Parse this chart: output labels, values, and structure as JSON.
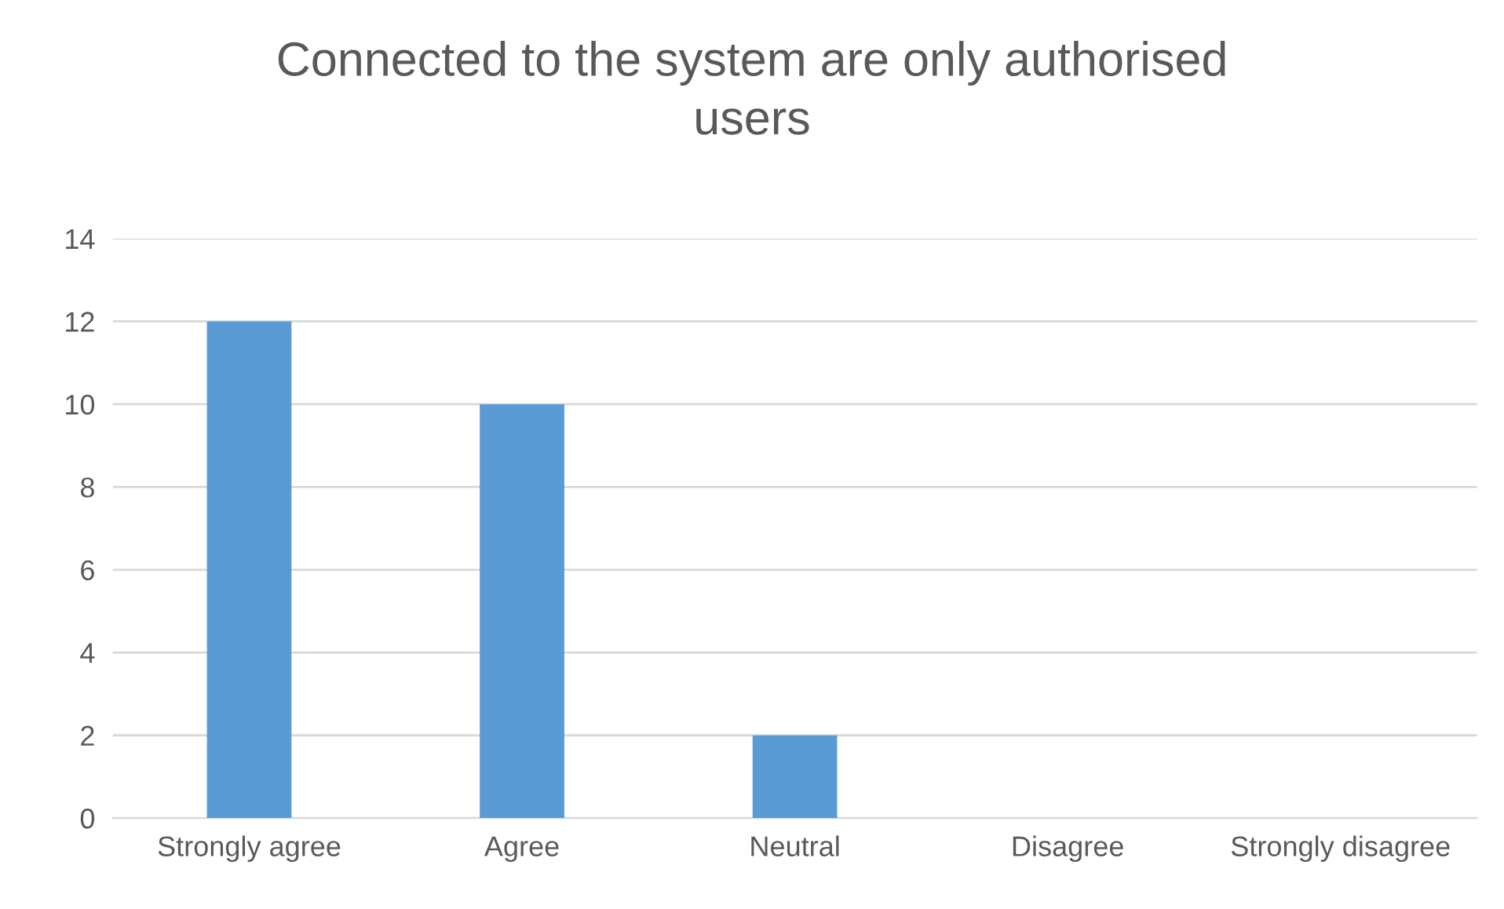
{
  "chart_data": {
    "type": "bar",
    "title": "Connected to the system are only authorised users",
    "categories": [
      "Strongly agree",
      "Agree",
      "Neutral",
      "Disagree",
      "Strongly disagree"
    ],
    "values": [
      12,
      10,
      2,
      0,
      0
    ],
    "color": "#5b9bd5",
    "ylim": [
      0,
      14
    ],
    "yticks": [
      0,
      2,
      4,
      6,
      8,
      10,
      12,
      14
    ],
    "grid": "y",
    "legend": false
  }
}
